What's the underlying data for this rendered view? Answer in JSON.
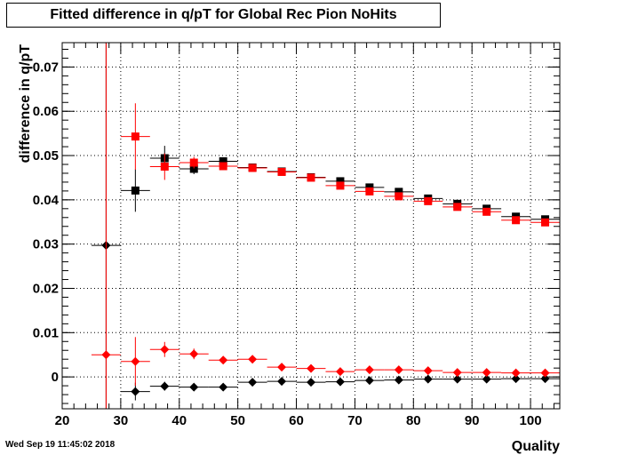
{
  "header": {
    "title": "Fitted difference in q/pT for Global Rec Pion NoHits",
    "timestamp": "Wed Sep 19 11:45:02 2018"
  },
  "chart_data": {
    "type": "scatter",
    "title": "Fitted difference in q/pT for Global Rec Pion NoHits",
    "xlabel": "Quality",
    "ylabel": "difference in q/pT",
    "xlim": [
      20,
      105
    ],
    "ylim": [
      -0.0072,
      0.0755
    ],
    "xticks": [
      20,
      30,
      40,
      50,
      60,
      70,
      80,
      90,
      100
    ],
    "yticks": [
      0,
      0.01,
      0.02,
      0.03,
      0.04,
      0.05,
      0.06,
      0.07
    ],
    "ytick_labels": [
      "0",
      "0.01",
      "0.02",
      "0.03",
      "0.04",
      "0.05",
      "0.06",
      "0.07"
    ],
    "grid": true,
    "series": [
      {
        "color": "#000000",
        "marker": "square",
        "points": [
          {
            "x": 32.5,
            "y": 0.0421,
            "yerr": 0.0048
          },
          {
            "x": 37.5,
            "y": 0.0494,
            "yerr": 0.0028
          },
          {
            "x": 42.5,
            "y": 0.047,
            "yerr": 0.0012
          },
          {
            "x": 47.5,
            "y": 0.0487,
            "yerr": 0.0008
          },
          {
            "x": 52.5,
            "y": 0.0473,
            "yerr": 0.0004
          },
          {
            "x": 57.5,
            "y": 0.0464,
            "yerr": 0.0003
          },
          {
            "x": 62.5,
            "y": 0.0451,
            "yerr": 0.0003
          },
          {
            "x": 67.5,
            "y": 0.0442,
            "yerr": 0.0002
          },
          {
            "x": 72.5,
            "y": 0.0428,
            "yerr": 0.0002
          },
          {
            "x": 77.5,
            "y": 0.0418,
            "yerr": 0.0002
          },
          {
            "x": 82.5,
            "y": 0.0403,
            "yerr": 0.0002
          },
          {
            "x": 87.5,
            "y": 0.0391,
            "yerr": 0.0002
          },
          {
            "x": 92.5,
            "y": 0.038,
            "yerr": 0.0002
          },
          {
            "x": 97.5,
            "y": 0.0362,
            "yerr": 0.0002
          },
          {
            "x": 102.5,
            "y": 0.0356,
            "yerr": 0.0002
          }
        ]
      },
      {
        "color": "#ff0000",
        "marker": "square",
        "points": [
          {
            "x": 32.5,
            "y": 0.0543,
            "yerr": 0.0075
          },
          {
            "x": 37.5,
            "y": 0.0475,
            "yerr": 0.003
          },
          {
            "x": 42.5,
            "y": 0.0484,
            "yerr": 0.0013
          },
          {
            "x": 47.5,
            "y": 0.0476,
            "yerr": 0.0008
          },
          {
            "x": 52.5,
            "y": 0.0472,
            "yerr": 0.0004
          },
          {
            "x": 57.5,
            "y": 0.0463,
            "yerr": 0.0003
          },
          {
            "x": 62.5,
            "y": 0.045,
            "yerr": 0.0003
          },
          {
            "x": 67.5,
            "y": 0.0432,
            "yerr": 0.0002
          },
          {
            "x": 72.5,
            "y": 0.0419,
            "yerr": 0.0002
          },
          {
            "x": 77.5,
            "y": 0.0408,
            "yerr": 0.0002
          },
          {
            "x": 82.5,
            "y": 0.0397,
            "yerr": 0.0002
          },
          {
            "x": 87.5,
            "y": 0.0384,
            "yerr": 0.0002
          },
          {
            "x": 92.5,
            "y": 0.0373,
            "yerr": 0.0002
          },
          {
            "x": 97.5,
            "y": 0.0354,
            "yerr": 0.0002
          },
          {
            "x": 102.5,
            "y": 0.0349,
            "yerr": 0.0002
          }
        ]
      },
      {
        "color": "#000000",
        "marker": "diamond",
        "points": [
          {
            "x": 27.5,
            "y": 0.0297,
            "yerr": 0.075
          },
          {
            "x": 32.5,
            "y": -0.0033,
            "yerr": 0.002
          },
          {
            "x": 37.5,
            "y": -0.0021,
            "yerr": 0.001
          },
          {
            "x": 42.5,
            "y": -0.0023,
            "yerr": 0.0007
          },
          {
            "x": 47.5,
            "y": -0.0023,
            "yerr": 0.0005
          },
          {
            "x": 52.5,
            "y": -0.0012,
            "yerr": 0.0003
          },
          {
            "x": 57.5,
            "y": -0.001,
            "yerr": 0.0002
          },
          {
            "x": 62.5,
            "y": -0.0012,
            "yerr": 0.0002
          },
          {
            "x": 67.5,
            "y": -0.0011,
            "yerr": 0.0002
          },
          {
            "x": 72.5,
            "y": -0.0008,
            "yerr": 0.0002
          },
          {
            "x": 77.5,
            "y": -0.0007,
            "yerr": 0.0002
          },
          {
            "x": 82.5,
            "y": -0.0005,
            "yerr": 0.0002
          },
          {
            "x": 87.5,
            "y": -0.0005,
            "yerr": 0.0002
          },
          {
            "x": 92.5,
            "y": -0.0005,
            "yerr": 0.0002
          },
          {
            "x": 97.5,
            "y": -0.0004,
            "yerr": 0.0002
          },
          {
            "x": 102.5,
            "y": -0.0004,
            "yerr": 0.0002
          }
        ]
      },
      {
        "color": "#ff0000",
        "marker": "diamond",
        "points": [
          {
            "x": 27.5,
            "y": 0.005,
            "yerr": 0.075
          },
          {
            "x": 32.5,
            "y": 0.0035,
            "yerr": 0.0055
          },
          {
            "x": 37.5,
            "y": 0.0062,
            "yerr": 0.0017
          },
          {
            "x": 42.5,
            "y": 0.0052,
            "yerr": 0.0012
          },
          {
            "x": 47.5,
            "y": 0.0038,
            "yerr": 0.0006
          },
          {
            "x": 52.5,
            "y": 0.004,
            "yerr": 0.0004
          },
          {
            "x": 57.5,
            "y": 0.0022,
            "yerr": 0.0003
          },
          {
            "x": 62.5,
            "y": 0.0019,
            "yerr": 0.0003
          },
          {
            "x": 67.5,
            "y": 0.0012,
            "yerr": 0.0002
          },
          {
            "x": 72.5,
            "y": 0.0016,
            "yerr": 0.0002
          },
          {
            "x": 77.5,
            "y": 0.0016,
            "yerr": 0.0002
          },
          {
            "x": 82.5,
            "y": 0.0014,
            "yerr": 0.0002
          },
          {
            "x": 87.5,
            "y": 0.001,
            "yerr": 0.0002
          },
          {
            "x": 92.5,
            "y": 0.001,
            "yerr": 0.0002
          },
          {
            "x": 97.5,
            "y": 0.0009,
            "yerr": 0.0002
          },
          {
            "x": 102.5,
            "y": 0.0009,
            "yerr": 0.0002
          }
        ]
      }
    ]
  }
}
